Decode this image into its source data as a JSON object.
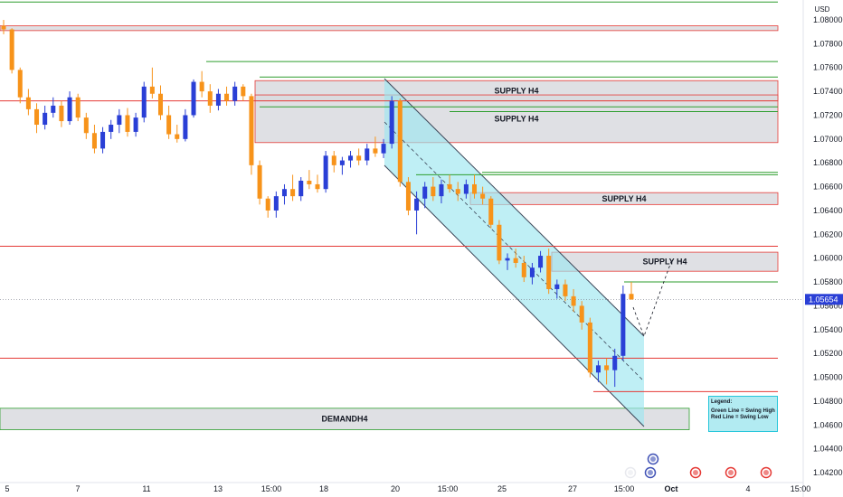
{
  "currency": "USD",
  "price_marker": {
    "value": 1.05654,
    "label": "1.05654"
  },
  "colors": {
    "bull": "#2a3fd6",
    "bear": "#f7931a",
    "supply_red": "#e53935",
    "swing_green": "#2e9e2e",
    "zone_fill": "#d9dadf",
    "channel_fill": "#9ce6f0",
    "channel_edge": "#3a4456"
  },
  "legend": {
    "title": "Legend:",
    "line1": "Green Line = Swing High",
    "line2": "Red Line = Swing Low"
  },
  "chart_data": {
    "type": "candlestick",
    "title": "",
    "y_axis": {
      "min": 1.041,
      "max": 1.0825,
      "ticks": [
        1.042,
        1.044,
        1.046,
        1.048,
        1.05,
        1.052,
        1.054,
        1.056,
        1.058,
        1.06,
        1.062,
        1.064,
        1.066,
        1.068,
        1.07,
        1.072,
        1.074,
        1.076,
        1.078,
        1.08
      ],
      "tick_labels": [
        "1.04200",
        "1.04400",
        "1.04600",
        "1.04800",
        "1.05000",
        "1.05200",
        "1.05400",
        "1.05600",
        "1.05800",
        "1.06000",
        "1.06200",
        "1.06400",
        "1.06600",
        "1.06800",
        "1.07000",
        "1.07200",
        "1.07400",
        "1.07600",
        "1.07800",
        "1.08000"
      ]
    },
    "x_axis": {
      "tick_labels": [
        "5",
        "7",
        "11",
        "13",
        "15:00",
        "18",
        "20",
        "15:00",
        "25",
        "27",
        "15:00",
        "Oct",
        "4",
        "15:00"
      ]
    },
    "zones": [
      {
        "label": "SUPPLY H4",
        "top": 1.0749,
        "bottom": 1.0732
      },
      {
        "label": "SUPPLY H4",
        "top": 1.0737,
        "bottom": 1.0697
      },
      {
        "label": "SUPPLY H4",
        "top": 1.0655,
        "bottom": 1.0645
      },
      {
        "label": "SUPPLY H4",
        "top": 1.0605,
        "bottom": 1.0589
      },
      {
        "label": "DEMANDH4",
        "top": 1.0474,
        "bottom": 1.0456
      },
      {
        "label": "",
        "top": 1.0795,
        "bottom": 1.0791
      }
    ],
    "swing_high_lines": [
      1.0815,
      1.0765,
      1.0752,
      1.0727,
      1.0723,
      1.0672,
      1.067,
      1.058
    ],
    "swing_low_lines": [
      1.0732,
      1.061,
      1.0516,
      1.0488
    ],
    "candles": [
      [
        1.0795,
        1.08,
        1.0788,
        1.0792
      ],
      [
        1.0792,
        1.0793,
        1.0755,
        1.0758
      ],
      [
        1.0758,
        1.076,
        1.073,
        1.0735
      ],
      [
        1.0735,
        1.0742,
        1.072,
        1.0725
      ],
      [
        1.0725,
        1.073,
        1.0705,
        1.0712
      ],
      [
        1.0712,
        1.0728,
        1.0708,
        1.0722
      ],
      [
        1.0722,
        1.0735,
        1.0718,
        1.0728
      ],
      [
        1.0728,
        1.0732,
        1.071,
        1.0715
      ],
      [
        1.0715,
        1.074,
        1.0712,
        1.0735
      ],
      [
        1.0735,
        1.0738,
        1.0715,
        1.0718
      ],
      [
        1.0718,
        1.0722,
        1.07,
        1.0705
      ],
      [
        1.0705,
        1.0712,
        1.0688,
        1.0692
      ],
      [
        1.0692,
        1.071,
        1.0688,
        1.0706
      ],
      [
        1.0706,
        1.0716,
        1.07,
        1.0712
      ],
      [
        1.0712,
        1.0725,
        1.0705,
        1.072
      ],
      [
        1.072,
        1.0726,
        1.0702,
        1.0706
      ],
      [
        1.0706,
        1.0722,
        1.0702,
        1.0718
      ],
      [
        1.0718,
        1.0748,
        1.0714,
        1.0744
      ],
      [
        1.0744,
        1.076,
        1.0734,
        1.0738
      ],
      [
        1.0738,
        1.0745,
        1.0716,
        1.072
      ],
      [
        1.072,
        1.0728,
        1.07,
        1.0704
      ],
      [
        1.0704,
        1.0712,
        1.0697,
        1.07
      ],
      [
        1.07,
        1.0725,
        1.0698,
        1.072
      ],
      [
        1.072,
        1.075,
        1.0718,
        1.0748
      ],
      [
        1.0748,
        1.0757,
        1.0735,
        1.074
      ],
      [
        1.074,
        1.0746,
        1.0722,
        1.0728
      ],
      [
        1.0728,
        1.0742,
        1.0724,
        1.0738
      ],
      [
        1.0738,
        1.0744,
        1.0728,
        1.0732
      ],
      [
        1.0732,
        1.0748,
        1.0728,
        1.0744
      ],
      [
        1.0744,
        1.0746,
        1.0732,
        1.0736
      ],
      [
        1.0736,
        1.0738,
        1.067,
        1.0678
      ],
      [
        1.0678,
        1.0682,
        1.0645,
        1.065
      ],
      [
        1.065,
        1.0652,
        1.0634,
        1.064
      ],
      [
        1.064,
        1.0656,
        1.0634,
        1.0652
      ],
      [
        1.0652,
        1.0662,
        1.0645,
        1.0658
      ],
      [
        1.0658,
        1.067,
        1.0648,
        1.0652
      ],
      [
        1.0652,
        1.0668,
        1.0648,
        1.0665
      ],
      [
        1.0665,
        1.0674,
        1.0658,
        1.0662
      ],
      [
        1.0662,
        1.067,
        1.0655,
        1.0658
      ],
      [
        1.0658,
        1.069,
        1.0655,
        1.0686
      ],
      [
        1.0686,
        1.069,
        1.0672,
        1.0678
      ],
      [
        1.0678,
        1.0685,
        1.067,
        1.0682
      ],
      [
        1.0682,
        1.069,
        1.0676,
        1.0686
      ],
      [
        1.0686,
        1.0692,
        1.0678,
        1.0682
      ],
      [
        1.0682,
        1.0696,
        1.0678,
        1.0692
      ],
      [
        1.0692,
        1.0702,
        1.0685,
        1.0688
      ],
      [
        1.0688,
        1.07,
        1.0684,
        1.0696
      ],
      [
        1.0696,
        1.0736,
        1.0692,
        1.0732
      ],
      [
        1.0732,
        1.0734,
        1.066,
        1.0664
      ],
      [
        1.0664,
        1.0668,
        1.0636,
        1.064
      ],
      [
        1.064,
        1.0656,
        1.062,
        1.065
      ],
      [
        1.065,
        1.0664,
        1.0642,
        1.066
      ],
      [
        1.066,
        1.0668,
        1.0648,
        1.0652
      ],
      [
        1.0652,
        1.0666,
        1.0646,
        1.0662
      ],
      [
        1.0662,
        1.067,
        1.0655,
        1.0658
      ],
      [
        1.0658,
        1.0664,
        1.0648,
        1.0654
      ],
      [
        1.0654,
        1.0666,
        1.065,
        1.0662
      ],
      [
        1.0662,
        1.067,
        1.065,
        1.0654
      ],
      [
        1.0654,
        1.066,
        1.0645,
        1.065
      ],
      [
        1.065,
        1.0652,
        1.0625,
        1.0628
      ],
      [
        1.0628,
        1.0632,
        1.0595,
        1.0598
      ],
      [
        1.0598,
        1.0604,
        1.059,
        1.06
      ],
      [
        1.06,
        1.0608,
        1.0592,
        1.0596
      ],
      [
        1.0596,
        1.0602,
        1.058,
        1.0584
      ],
      [
        1.0584,
        1.0596,
        1.0578,
        1.0592
      ],
      [
        1.0592,
        1.0606,
        1.0588,
        1.0602
      ],
      [
        1.0602,
        1.0608,
        1.057,
        1.0574
      ],
      [
        1.0574,
        1.0582,
        1.0566,
        1.0578
      ],
      [
        1.0578,
        1.0582,
        1.0564,
        1.0568
      ],
      [
        1.0568,
        1.0574,
        1.0555,
        1.056
      ],
      [
        1.056,
        1.0564,
        1.054,
        1.0546
      ],
      [
        1.0546,
        1.055,
        1.05,
        1.0504
      ],
      [
        1.0504,
        1.0514,
        1.0496,
        1.051
      ],
      [
        1.051,
        1.0516,
        1.0494,
        1.0506
      ],
      [
        1.0506,
        1.0524,
        1.0492,
        1.0518
      ],
      [
        1.0518,
        1.0577,
        1.0514,
        1.057
      ],
      [
        1.057,
        1.058,
        1.0565,
        1.05654
      ]
    ]
  }
}
